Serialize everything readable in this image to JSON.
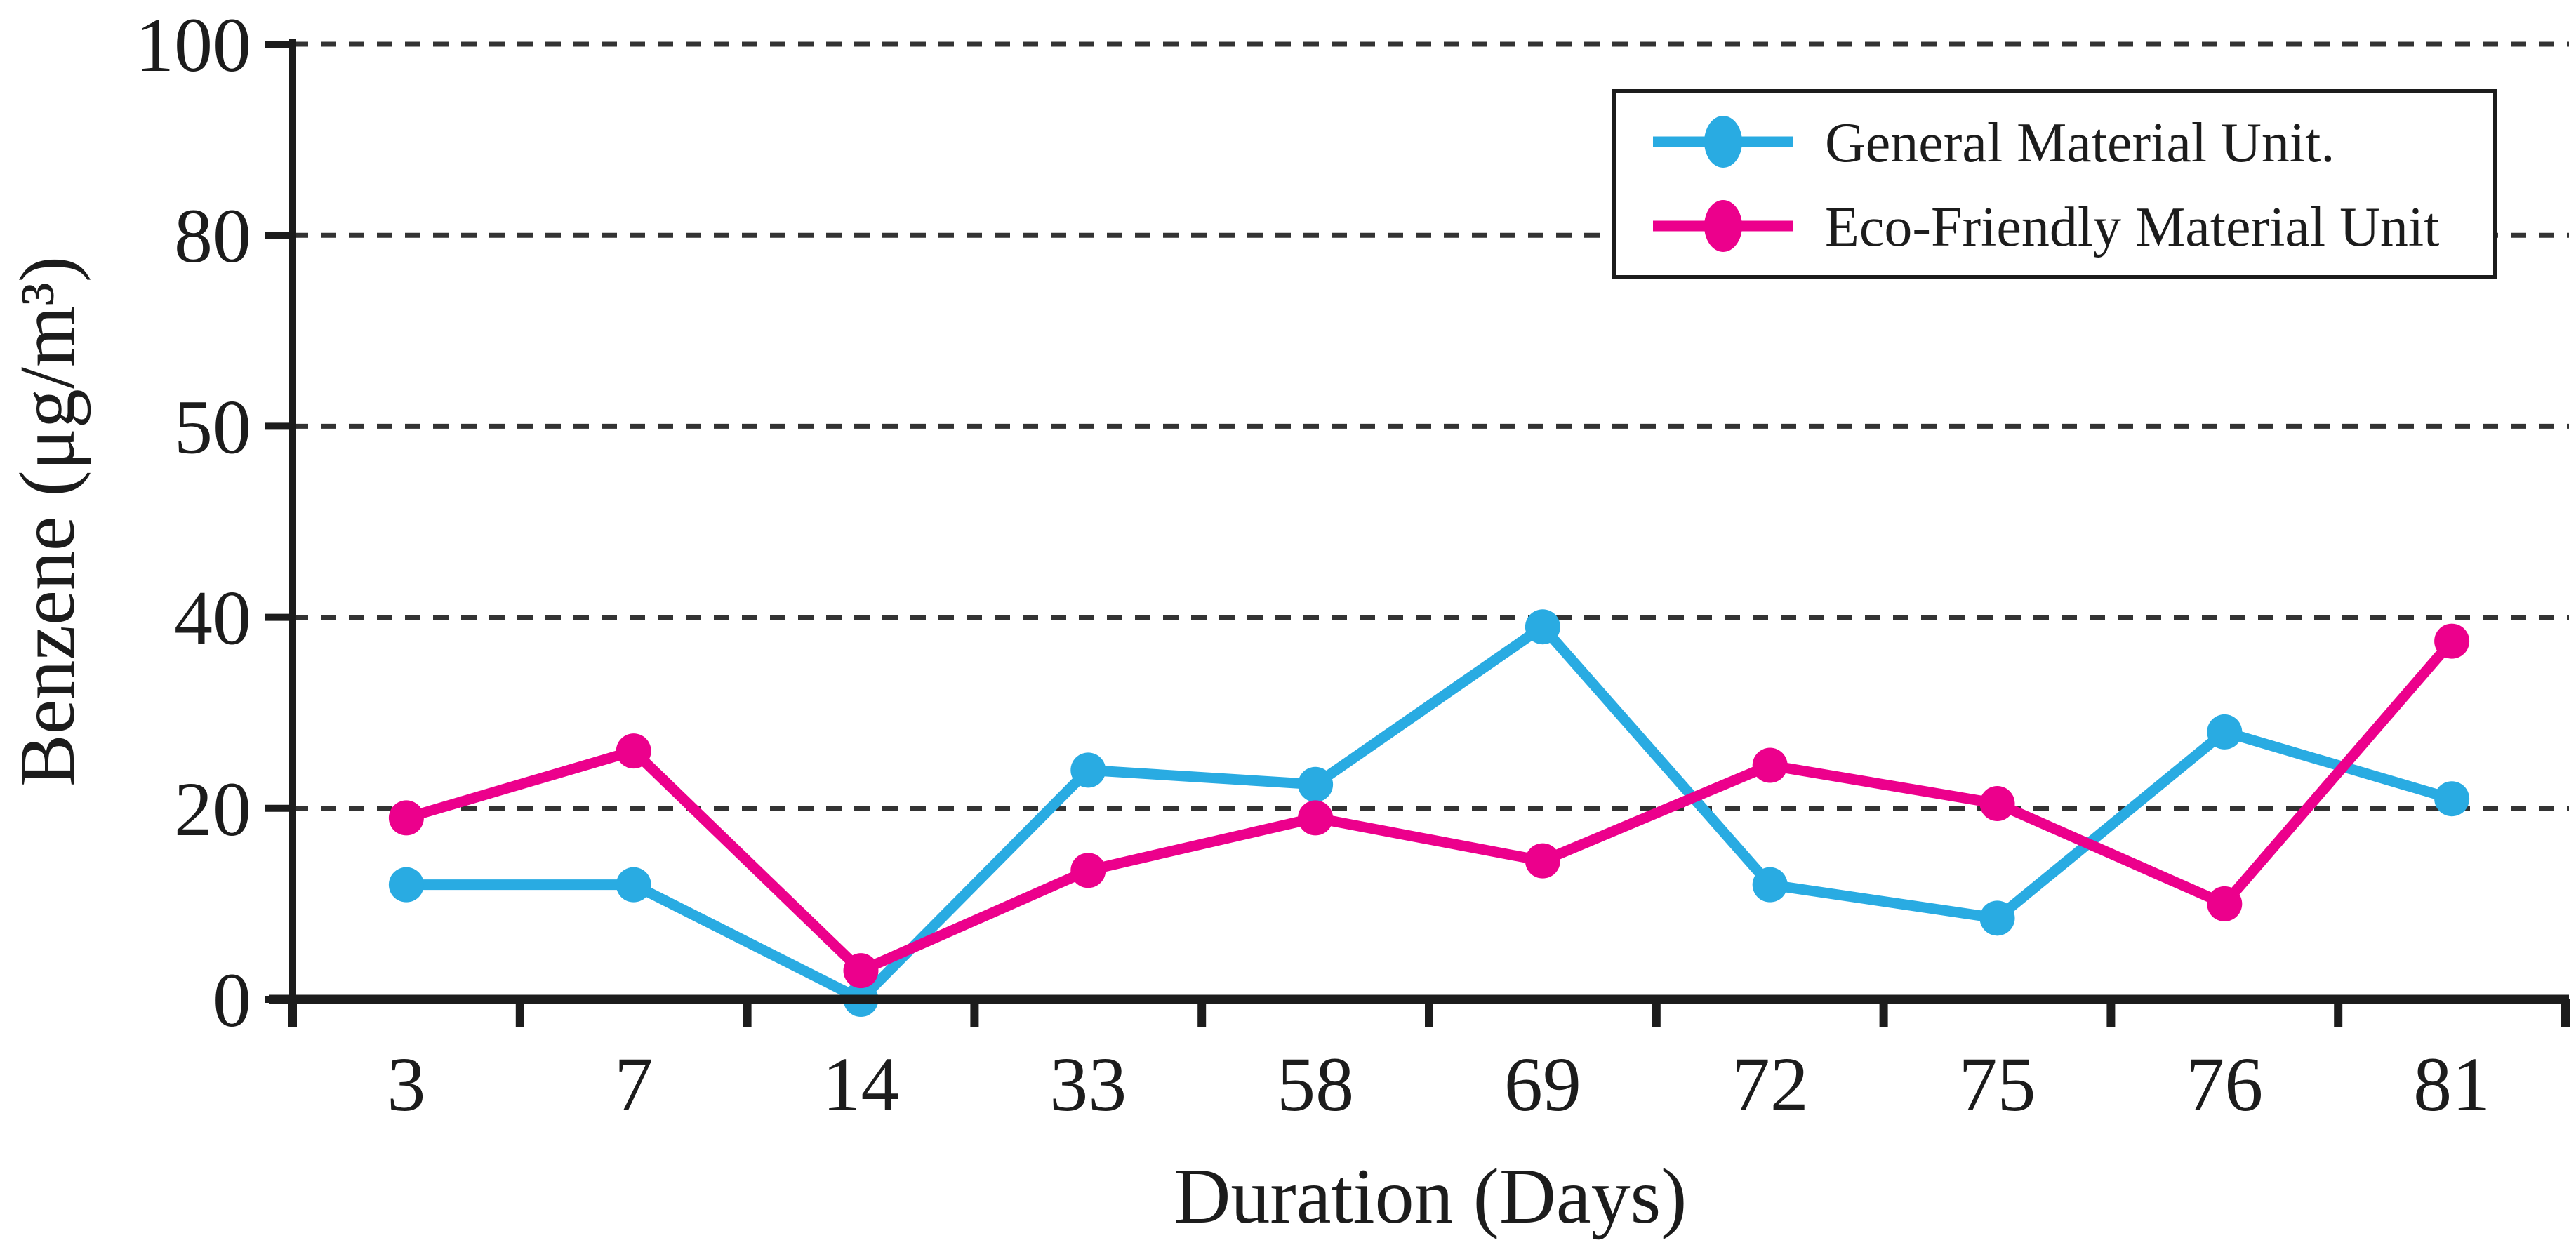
{
  "figure": {
    "background": "#ffffff",
    "axis_color": "#1c1c1c",
    "gridline_color": "#333333",
    "gridline_style": "dashed"
  },
  "legend": {
    "position": "top-right",
    "entries": [
      {
        "label": "General Material Unit.",
        "color": "#29ABE2"
      },
      {
        "label": "Eco-Friendly Material Unit",
        "color": "#EC008C"
      }
    ]
  },
  "chart_data": {
    "type": "line",
    "title": "",
    "xlabel": "Duration (Days)",
    "ylabel": "Benzene (μg/m³)",
    "categories": [
      "3",
      "7",
      "14",
      "33",
      "58",
      "69",
      "72",
      "75",
      "76",
      "81"
    ],
    "y_tick_labels": [
      "0",
      "20",
      "40",
      "50",
      "80",
      "100"
    ],
    "y_axis_note": "tick labels 0,20,40,50,80,100 are drawn equally spaced (non-linear value axis)",
    "grid": "horizontal dashed gridlines at each y tick",
    "legend_position": "top-right inside plot",
    "series": [
      {
        "name": "General Material Unit.",
        "color": "#29ABE2",
        "values": [
          12,
          12,
          0,
          24,
          22.5,
          39,
          12,
          8.5,
          28,
          21
        ]
      },
      {
        "name": "Eco-Friendly Material Unit",
        "color": "#EC008C",
        "values": [
          19,
          26,
          3,
          13.5,
          19,
          14.5,
          24.5,
          20.5,
          10,
          37.5
        ]
      }
    ]
  }
}
